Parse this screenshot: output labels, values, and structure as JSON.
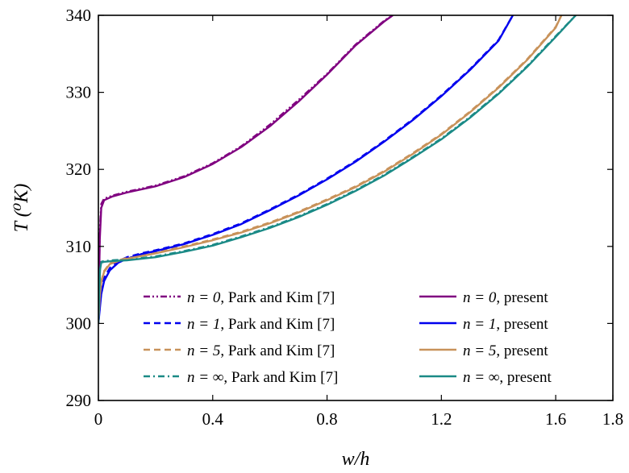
{
  "chart_data": {
    "type": "line",
    "xlabel": "w/h",
    "ylabel": "T (⁰K)",
    "xlim": [
      0,
      1.8
    ],
    "ylim": [
      290,
      340
    ],
    "xticks": [
      0,
      0.4,
      0.8,
      1.2,
      1.6,
      1.8
    ],
    "xtick_labels": [
      "0",
      "0.4",
      "0.8",
      "1.2",
      "1.6",
      "1.8"
    ],
    "yticks": [
      290,
      300,
      310,
      320,
      330,
      340
    ],
    "ytick_labels": [
      "290",
      "300",
      "310",
      "320",
      "330",
      "340"
    ],
    "grid": false,
    "legend_position": "lower-center, two columns",
    "series": [
      {
        "name": "n = 0, Park and Kim [7]",
        "n_label": "n = 0",
        "suffix": ", Park and Kim [7]",
        "color": "#800080",
        "style": "dashdotdot",
        "x": [
          0,
          0.005,
          0.01,
          0.02,
          0.05,
          0.1,
          0.2,
          0.3,
          0.4,
          0.5,
          0.6,
          0.7,
          0.8,
          0.9,
          1.0,
          1.03
        ],
        "y": [
          300,
          312,
          315.5,
          316.2,
          316.6,
          317.1,
          317.9,
          319.1,
          320.8,
          323.0,
          325.8,
          329.0,
          332.4,
          336.2,
          339.3,
          340
        ]
      },
      {
        "name": "n = 1, Park and Kim [7]",
        "n_label": "n = 1",
        "suffix": ", Park and Kim [7]",
        "color": "#0000ee",
        "style": "dashed",
        "x": [
          0,
          0.01,
          0.02,
          0.04,
          0.07,
          0.1,
          0.15,
          0.2,
          0.3,
          0.4,
          0.5,
          0.6,
          0.7,
          0.8,
          0.9,
          1.0,
          1.1,
          1.2,
          1.3,
          1.4,
          1.45
        ],
        "y": [
          300,
          304.3,
          305.9,
          307.2,
          308.1,
          308.6,
          309.1,
          309.5,
          310.4,
          311.6,
          313.0,
          314.8,
          316.7,
          318.8,
          321.1,
          323.7,
          326.5,
          329.6,
          333.0,
          336.8,
          340
        ]
      },
      {
        "name": "n = 5, Park and Kim [7]",
        "n_label": "n = 5",
        "suffix": ", Park and Kim [7]",
        "color": "#c8925a",
        "style": "dashed",
        "x": [
          0,
          0.005,
          0.01,
          0.02,
          0.04,
          0.07,
          0.1,
          0.2,
          0.3,
          0.4,
          0.5,
          0.6,
          0.7,
          0.8,
          0.9,
          1.0,
          1.1,
          1.2,
          1.3,
          1.4,
          1.5,
          1.6,
          1.62
        ],
        "y": [
          300,
          303.8,
          305.5,
          306.8,
          307.8,
          308.2,
          308.5,
          309.2,
          310.0,
          310.9,
          311.9,
          313.1,
          314.5,
          316.1,
          317.8,
          319.8,
          322.1,
          324.6,
          327.5,
          330.7,
          334.3,
          338.5,
          340
        ]
      },
      {
        "name": "n = ∞, Park and Kim [7]",
        "n_label": "n = ∞",
        "suffix": ", Park and Kim [7]",
        "color": "#1a8a86",
        "style": "dashdot",
        "x": [
          0,
          0.003,
          0.006,
          0.01,
          0.02,
          0.05,
          0.1,
          0.2,
          0.3,
          0.4,
          0.5,
          0.6,
          0.7,
          0.8,
          0.9,
          1.0,
          1.1,
          1.2,
          1.3,
          1.4,
          1.5,
          1.6,
          1.67
        ],
        "y": [
          300,
          304.5,
          307.4,
          308.0,
          308.1,
          308.2,
          308.3,
          308.7,
          309.4,
          310.2,
          311.3,
          312.5,
          313.9,
          315.5,
          317.3,
          319.3,
          321.6,
          324.0,
          326.8,
          329.9,
          333.4,
          337.3,
          340
        ]
      },
      {
        "name": "n = 0, present",
        "n_label": "n = 0",
        "suffix": ", present",
        "color": "#800080",
        "style": "solid",
        "x": [
          0,
          0.005,
          0.01,
          0.02,
          0.05,
          0.1,
          0.2,
          0.3,
          0.4,
          0.5,
          0.6,
          0.7,
          0.8,
          0.9,
          1.0,
          1.03
        ],
        "y": [
          300,
          311,
          315,
          316.0,
          316.5,
          317.0,
          317.8,
          319.0,
          320.7,
          322.9,
          325.6,
          328.8,
          332.3,
          336.1,
          339.2,
          340
        ]
      },
      {
        "name": "n = 1, present",
        "n_label": "n = 1",
        "suffix": ", present",
        "color": "#0000ee",
        "style": "solid",
        "x": [
          0,
          0.01,
          0.02,
          0.04,
          0.07,
          0.1,
          0.15,
          0.2,
          0.3,
          0.4,
          0.5,
          0.6,
          0.7,
          0.8,
          0.9,
          1.0,
          1.1,
          1.2,
          1.3,
          1.4,
          1.45
        ],
        "y": [
          300,
          303.8,
          305.5,
          306.9,
          307.9,
          308.4,
          309.0,
          309.4,
          310.3,
          311.5,
          312.9,
          314.7,
          316.6,
          318.7,
          321.0,
          323.6,
          326.4,
          329.5,
          332.9,
          336.7,
          340
        ]
      },
      {
        "name": "n = 5, present",
        "n_label": "n = 5",
        "suffix": ", present",
        "color": "#c8925a",
        "style": "solid",
        "x": [
          0,
          0.005,
          0.01,
          0.02,
          0.04,
          0.07,
          0.1,
          0.2,
          0.3,
          0.4,
          0.5,
          0.6,
          0.7,
          0.8,
          0.9,
          1.0,
          1.1,
          1.2,
          1.3,
          1.4,
          1.5,
          1.6,
          1.62
        ],
        "y": [
          300,
          303.5,
          305.3,
          306.7,
          307.7,
          308.1,
          308.4,
          309.1,
          309.9,
          310.8,
          311.8,
          313.0,
          314.4,
          316.0,
          317.7,
          319.7,
          322.0,
          324.5,
          327.4,
          330.6,
          334.2,
          338.4,
          340
        ]
      },
      {
        "name": "n = ∞, present",
        "n_label": "n = ∞",
        "suffix": ", present",
        "color": "#1a8a86",
        "style": "solid",
        "x": [
          0,
          0.003,
          0.006,
          0.01,
          0.02,
          0.05,
          0.1,
          0.2,
          0.3,
          0.4,
          0.5,
          0.6,
          0.7,
          0.8,
          0.9,
          1.0,
          1.1,
          1.2,
          1.3,
          1.4,
          1.5,
          1.6,
          1.67
        ],
        "y": [
          300,
          304.0,
          307.0,
          307.9,
          308.0,
          308.1,
          308.2,
          308.6,
          309.3,
          310.1,
          311.2,
          312.4,
          313.8,
          315.4,
          317.2,
          319.2,
          321.5,
          323.9,
          326.7,
          329.8,
          333.3,
          337.2,
          340
        ]
      }
    ]
  }
}
